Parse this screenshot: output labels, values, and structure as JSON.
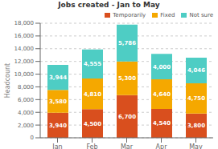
{
  "chart_data": {
    "type": "bar",
    "stacked": true,
    "title": "Jobs created - Jan to May",
    "categories": [
      "Jan",
      "Feb",
      "Mar",
      "Apr",
      "May"
    ],
    "series": [
      {
        "name": "Temporarily",
        "color": "#d94f1e",
        "values": [
          3940,
          4500,
          6700,
          4540,
          3800
        ],
        "value_labels": [
          "3,940",
          "4,500",
          "6,700",
          "4,540",
          "3,800"
        ]
      },
      {
        "name": "Fixed",
        "color": "#f5a800",
        "values": [
          3580,
          4810,
          5300,
          4640,
          4750
        ],
        "value_labels": [
          "3,580",
          "4,810",
          "5,300",
          "4,640",
          "4,750"
        ]
      },
      {
        "name": "Not sure",
        "color": "#4ecdc4",
        "values": [
          3944,
          4555,
          5786,
          4000,
          4046
        ],
        "value_labels": [
          "3,944",
          "4,555",
          "5,786",
          "4,000",
          "4,046"
        ]
      }
    ],
    "ylabel": "Headcount",
    "ylim": [
      0,
      18000
    ],
    "yticks": [
      0,
      {
        "value": 2000,
        "label": "2,000"
      },
      {
        "value": 4000,
        "label": "4,000"
      },
      {
        "value": 6000,
        "label": "6,000"
      },
      {
        "value": 8000,
        "label": "8,000"
      },
      {
        "value": 10000,
        "label": "10,000"
      },
      {
        "value": 12000,
        "label": "12,000"
      },
      {
        "value": 14000,
        "label": "14,000"
      },
      {
        "value": 16000,
        "label": "16,000"
      },
      {
        "value": 18000,
        "label": "18,000"
      }
    ],
    "grid": true,
    "legend": "upper right",
    "data_labels": true
  }
}
